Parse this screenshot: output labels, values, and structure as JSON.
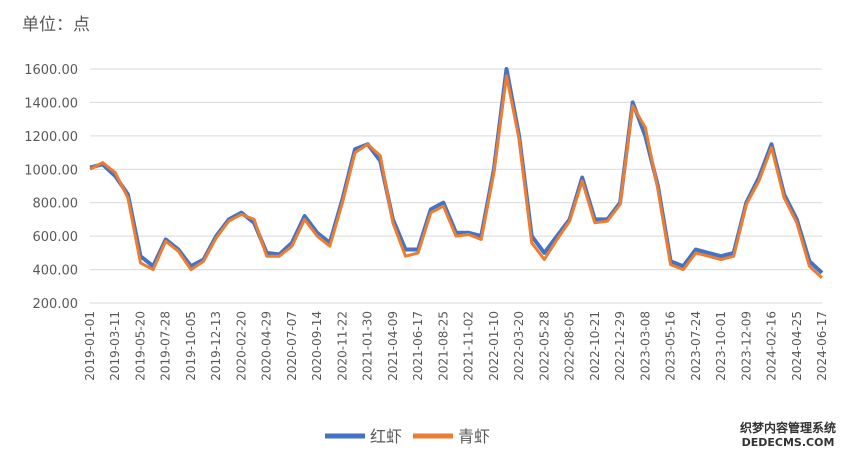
{
  "chart_data": {
    "type": "line",
    "y_label": "单位：点",
    "categories": [
      "2019-01-01",
      null,
      "2019-03-11",
      null,
      "2019-05-20",
      null,
      "2019-07-28",
      null,
      "2019-10-05",
      null,
      "2019-12-13",
      null,
      "2020-02-20",
      null,
      "2020-04-29",
      null,
      "2020-07-07",
      null,
      "2020-09-14",
      null,
      "2020-11-22",
      null,
      "2021-01-30",
      null,
      "2021-04-09",
      null,
      "2021-06-17",
      null,
      "2021-08-25",
      null,
      "2021-11-02",
      null,
      "2022-01-10",
      null,
      "2022-03-20",
      null,
      "2022-05-28",
      null,
      "2022-08-05",
      null,
      "2022-10-21",
      null,
      "2022-12-29",
      null,
      "2023-03-08",
      null,
      "2023-05-16",
      null,
      "2023-07-24",
      null,
      "2023-10-01",
      null,
      "2023-12-09",
      null,
      "2024-02-16",
      null,
      "2024-04-25",
      null,
      "2024-06-17"
    ],
    "series": [
      {
        "name": "红虾",
        "color": "#4472c4",
        "values": [
          1010,
          1030,
          960,
          850,
          480,
          420,
          580,
          520,
          420,
          460,
          600,
          700,
          740,
          680,
          500,
          490,
          560,
          720,
          620,
          560,
          820,
          1120,
          1150,
          1050,
          700,
          520,
          520,
          760,
          800,
          620,
          620,
          600,
          1000,
          1600,
          1200,
          600,
          500,
          600,
          700,
          950,
          700,
          700,
          800,
          1400,
          1200,
          900,
          450,
          420,
          520,
          500,
          480,
          500,
          800,
          950,
          1150,
          850,
          700,
          450,
          380
        ]
      },
      {
        "name": "青虾",
        "color": "#ed7d31",
        "values": [
          1000,
          1040,
          980,
          830,
          440,
          400,
          570,
          510,
          400,
          450,
          590,
          690,
          730,
          700,
          480,
          480,
          540,
          700,
          600,
          540,
          800,
          1100,
          1150,
          1080,
          680,
          480,
          500,
          740,
          780,
          600,
          610,
          580,
          980,
          1560,
          1180,
          560,
          460,
          580,
          690,
          930,
          680,
          690,
          790,
          1380,
          1250,
          880,
          430,
          400,
          500,
          480,
          460,
          480,
          790,
          930,
          1130,
          830,
          680,
          420,
          350
        ]
      }
    ],
    "ylim": [
      200,
      1600
    ],
    "yticks": [
      {
        "value": 200,
        "label": "200.00"
      },
      {
        "value": 400,
        "label": "400.00"
      },
      {
        "value": 600,
        "label": "600.00"
      },
      {
        "value": 800,
        "label": "800.00"
      },
      {
        "value": 1000,
        "label": "1000.00"
      },
      {
        "value": 1200,
        "label": "1200.00"
      },
      {
        "value": 1400,
        "label": "1400.00"
      },
      {
        "value": 1600,
        "label": "1600.00"
      }
    ],
    "grid": true,
    "legend": "bottom",
    "watermark": [
      "织梦内容管理系统",
      "DEDECMS.COM"
    ]
  }
}
